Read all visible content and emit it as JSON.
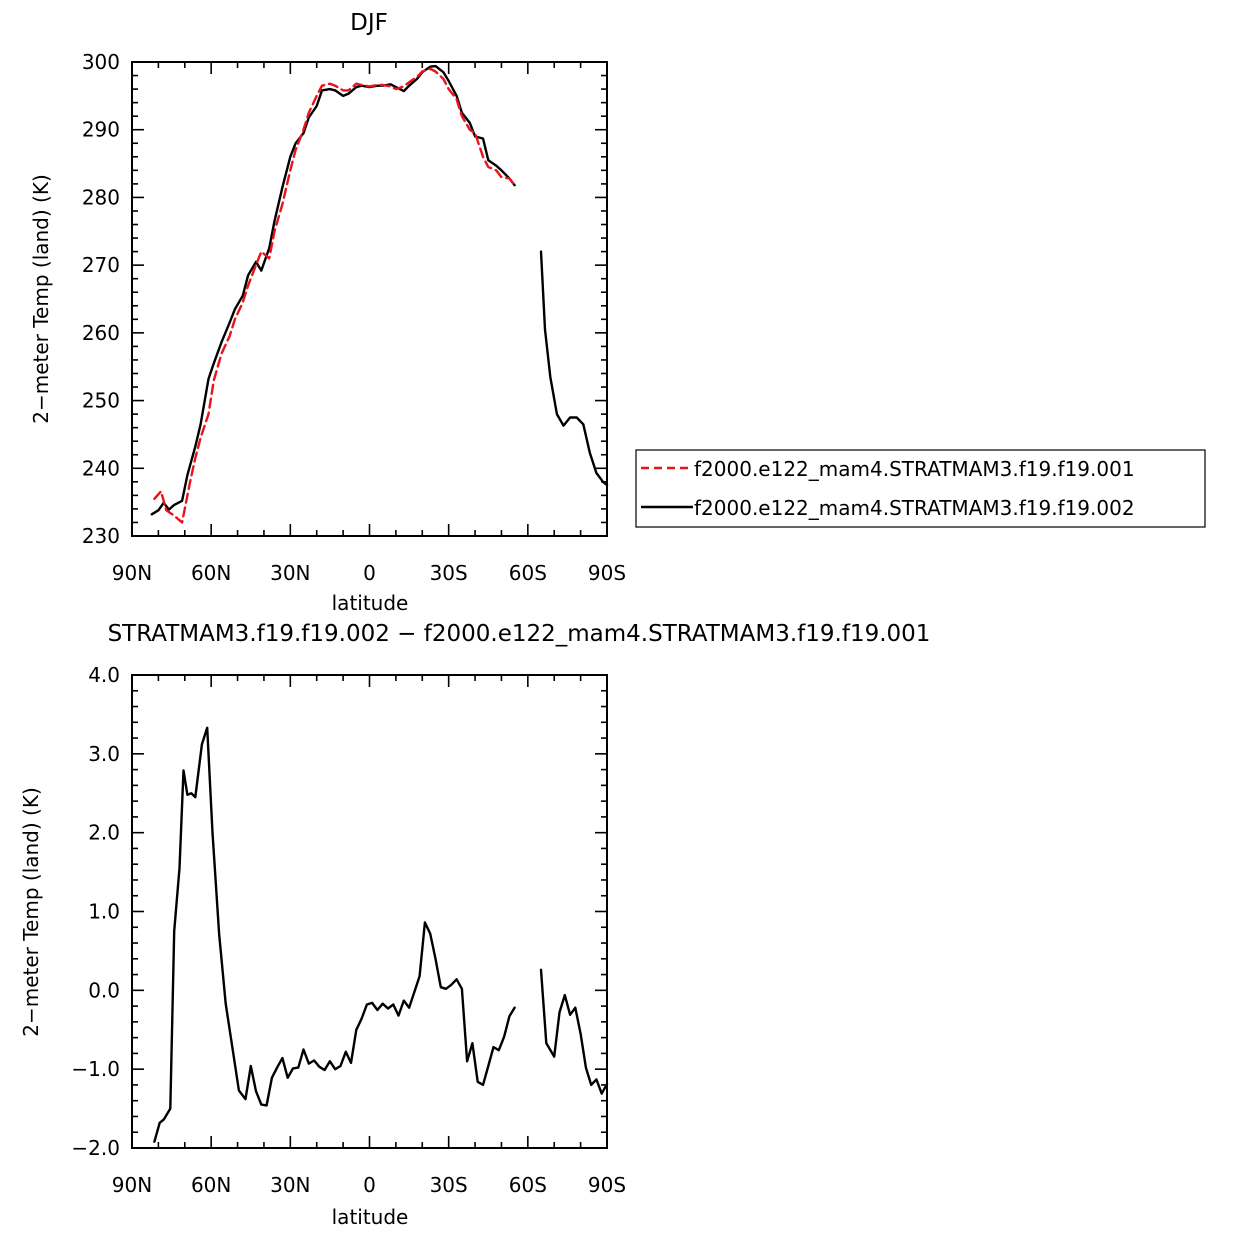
{
  "chart_data": [
    {
      "type": "line",
      "title": "DJF",
      "xlabel": "latitude",
      "ylabel": "2−meter Temp (land) (K)",
      "xlim": [
        -90,
        90
      ],
      "ylim": [
        230,
        300
      ],
      "grid": false,
      "legend_position": "right",
      "x_ticks": [
        {
          "value": -90,
          "label": "90N"
        },
        {
          "value": -60,
          "label": "60N"
        },
        {
          "value": -30,
          "label": "30N"
        },
        {
          "value": 0,
          "label": "0"
        },
        {
          "value": 30,
          "label": "30S"
        },
        {
          "value": 60,
          "label": "60S"
        },
        {
          "value": 90,
          "label": "90S"
        }
      ],
      "y_ticks": [
        {
          "value": 230,
          "label": "230"
        },
        {
          "value": 240,
          "label": "240"
        },
        {
          "value": 250,
          "label": "250"
        },
        {
          "value": 260,
          "label": "260"
        },
        {
          "value": 270,
          "label": "270"
        },
        {
          "value": 280,
          "label": "280"
        },
        {
          "value": 290,
          "label": "290"
        },
        {
          "value": 300,
          "label": "300"
        }
      ],
      "series": [
        {
          "name": "f2000.e122_mam4.STRATMAM3.f19.f19.001",
          "color": "#e8141c",
          "dash": "dashed",
          "segments": [
            {
              "x": [
                -81.5,
                -79,
                -77,
                -74,
                -71,
                -68,
                -66,
                -64,
                -61,
                -59,
                -56,
                -53,
                -51,
                -48,
                -46,
                -43,
                -41,
                -38,
                -36,
                -33,
                -30,
                -28,
                -25,
                -23,
                -20,
                -18,
                -15,
                -13,
                -10,
                -8,
                -5,
                -3,
                0,
                3,
                5,
                8,
                10,
                13,
                15,
                18,
                20,
                23,
                25,
                28,
                30,
                33,
                35,
                38,
                40,
                43,
                45,
                48,
                50,
                53,
                55
              ],
              "y": [
                235.5,
                236.6,
                233.8,
                233,
                232,
                238,
                241.5,
                244.5,
                248,
                253,
                257,
                259.5,
                262,
                264.5,
                267,
                270,
                272,
                271,
                275,
                279,
                284,
                287,
                290,
                292.5,
                295,
                296.5,
                296.8,
                296.5,
                295.8,
                295.8,
                296.8,
                296.6,
                296.4,
                296.6,
                296.6,
                296.4,
                296,
                296.4,
                297,
                297.8,
                298.6,
                299,
                298.6,
                297.5,
                296,
                294.5,
                292,
                290,
                289.5,
                286,
                284.5,
                284,
                283,
                282.8,
                281.8
              ]
            }
          ]
        },
        {
          "name": "f2000.e122_mam4.STRATMAM3.f19.f19.002",
          "color": "#000000",
          "dash": "solid",
          "segments": [
            {
              "x": [
                -82.5,
                -80,
                -78,
                -76,
                -74,
                -71,
                -69,
                -66,
                -64,
                -61,
                -59,
                -56,
                -53,
                -51,
                -48,
                -46,
                -43,
                -41,
                -38,
                -36,
                -33,
                -30,
                -28,
                -25,
                -23,
                -20,
                -18,
                -15,
                -13,
                -10,
                -8,
                -5,
                -3,
                0,
                3,
                5,
                8,
                10,
                13,
                15,
                18,
                20,
                23,
                25,
                28,
                30,
                33,
                35,
                38,
                40,
                43,
                45,
                48,
                50,
                53,
                55
              ],
              "y": [
                233.2,
                233.8,
                234.9,
                233.9,
                234.6,
                235.2,
                239,
                243.2,
                246.5,
                253.2,
                255.5,
                258.7,
                261.5,
                263.5,
                265.5,
                268.5,
                270.5,
                269.2,
                272.5,
                276.5,
                281.5,
                286,
                288,
                289.5,
                291.8,
                293.5,
                295.8,
                296,
                295.8,
                295,
                295.3,
                296.3,
                296.5,
                296.3,
                296.5,
                296.5,
                296.7,
                296.3,
                295.7,
                296.5,
                297.5,
                298.5,
                299.3,
                299.4,
                298.5,
                297.2,
                295,
                292.5,
                291,
                289,
                288.7,
                285.5,
                284.7,
                284,
                282.8,
                281.8
              ]
            },
            {
              "x": [
                65,
                66.5,
                68.5,
                71,
                73.5,
                76,
                78.5,
                81,
                83.5,
                86,
                88.5,
                90
              ],
              "y": [
                272,
                260.5,
                253.5,
                248,
                246.3,
                247.5,
                247.5,
                246.5,
                242.3,
                239.3,
                238,
                237.5
              ]
            }
          ]
        }
      ]
    },
    {
      "type": "line",
      "title": "STRATMAM3.f19.f19.002 − f2000.e122_mam4.STRATMAM3.f19.f19.001",
      "xlabel": "latitude",
      "ylabel": "2−meter Temp (land) (K)",
      "xlim": [
        -90,
        90
      ],
      "ylim": [
        -2,
        4
      ],
      "grid": false,
      "x_ticks": [
        {
          "value": -90,
          "label": "90N"
        },
        {
          "value": -60,
          "label": "60N"
        },
        {
          "value": -30,
          "label": "30N"
        },
        {
          "value": 0,
          "label": "0"
        },
        {
          "value": 30,
          "label": "30S"
        },
        {
          "value": 60,
          "label": "60S"
        },
        {
          "value": 90,
          "label": "90S"
        }
      ],
      "y_ticks": [
        {
          "value": -2,
          "label": "−2.0"
        },
        {
          "value": -1,
          "label": "−1.0"
        },
        {
          "value": 0,
          "label": "0.0"
        },
        {
          "value": 1,
          "label": "1.0"
        },
        {
          "value": 2,
          "label": "2.0"
        },
        {
          "value": 3,
          "label": "3.0"
        },
        {
          "value": 4,
          "label": "4.0"
        }
      ],
      "series": [
        {
          "color": "#000000",
          "dash": "solid",
          "segments": [
            {
              "x": [
                -81.5,
                -79.5,
                -78,
                -75.5,
                -74,
                -72,
                -70.5,
                -69,
                -67.5,
                -66,
                -63.5,
                -61.5,
                -59.5,
                -57,
                -54.5,
                -52,
                -49.5,
                -47,
                -45,
                -43,
                -41,
                -39,
                -37,
                -35,
                -33,
                -31,
                -29,
                -27,
                -25,
                -23,
                -21,
                -19,
                -17,
                -15,
                -13,
                -11,
                -9,
                -7,
                -5,
                -3,
                -1,
                1,
                3,
                5,
                7,
                9,
                11,
                13,
                15,
                17,
                19,
                21,
                23,
                25,
                27,
                29,
                31,
                33,
                35,
                37,
                39,
                41,
                43,
                45,
                47,
                49,
                51,
                53,
                55
              ],
              "y": [
                -1.92,
                -1.68,
                -1.64,
                -1.5,
                0.75,
                1.55,
                2.79,
                2.48,
                2.5,
                2.45,
                3.12,
                3.33,
                2.0,
                0.72,
                -0.17,
                -0.72,
                -1.27,
                -1.38,
                -0.96,
                -1.28,
                -1.45,
                -1.46,
                -1.11,
                -0.98,
                -0.86,
                -1.11,
                -0.99,
                -0.98,
                -0.75,
                -0.93,
                -0.89,
                -0.97,
                -1.01,
                -0.9,
                -1.0,
                -0.96,
                -0.78,
                -0.92,
                -0.5,
                -0.36,
                -0.18,
                -0.16,
                -0.25,
                -0.17,
                -0.23,
                -0.18,
                -0.32,
                -0.13,
                -0.22,
                -0.02,
                0.18,
                0.86,
                0.72,
                0.4,
                0.04,
                0.02,
                0.07,
                0.14,
                0.02,
                -0.9,
                -0.67,
                -1.16,
                -1.2,
                -0.96,
                -0.72,
                -0.76,
                -0.59,
                -0.33,
                -0.22
              ]
            },
            {
              "x": [
                65,
                67,
                70,
                72,
                74,
                76,
                78,
                80,
                82,
                84,
                86,
                88,
                90
              ],
              "y": [
                0.26,
                -0.67,
                -0.84,
                -0.28,
                -0.06,
                -0.31,
                -0.22,
                -0.55,
                -0.98,
                -1.2,
                -1.13,
                -1.31,
                -1.19
              ]
            }
          ]
        }
      ]
    }
  ]
}
